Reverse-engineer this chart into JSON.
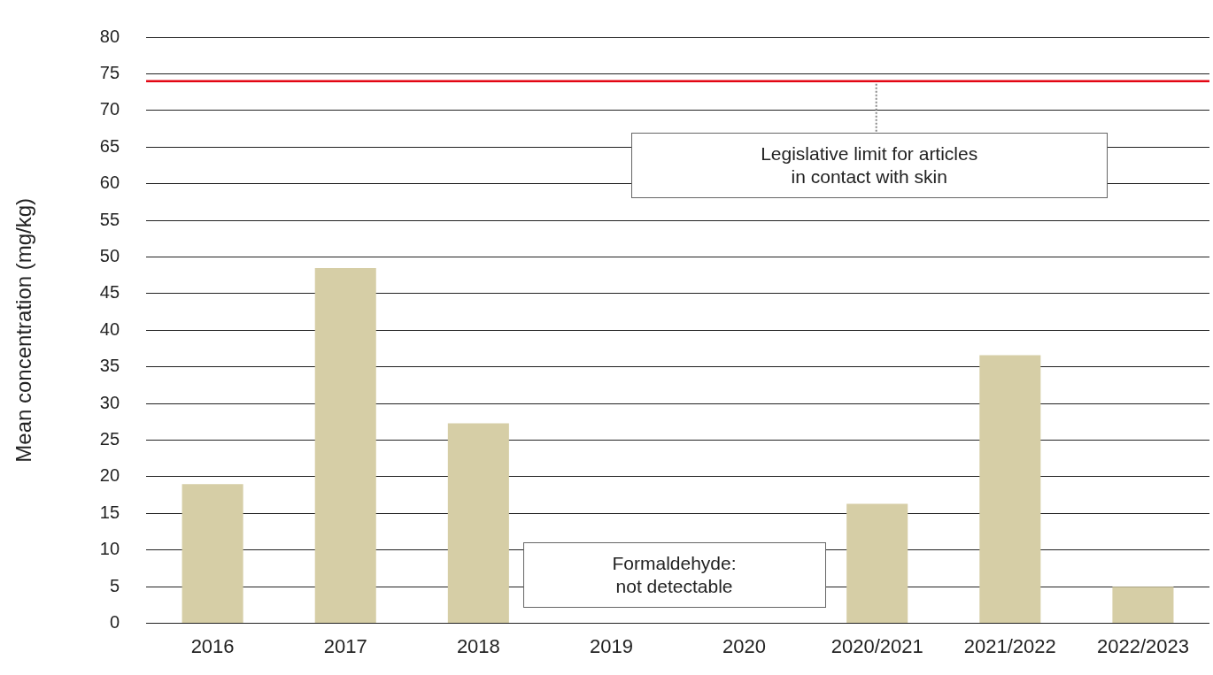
{
  "chart_data": {
    "type": "bar",
    "ylabel": "Mean concentration (mg/kg)",
    "categories": [
      "2016",
      "2017",
      "2018",
      "2019",
      "2020",
      "2020/2021",
      "2021/2022",
      "2022/2023"
    ],
    "values": [
      19,
      48.5,
      27.3,
      null,
      null,
      16.3,
      36.6,
      5
    ],
    "color": "#d6cea6",
    "ylim": [
      0,
      80
    ],
    "yticks": [
      0,
      5,
      10,
      15,
      20,
      25,
      30,
      35,
      40,
      45,
      50,
      55,
      60,
      65,
      70,
      75,
      80
    ],
    "grid": "y",
    "legend": false,
    "ref_lines": [
      {
        "axis": "y",
        "value": 74,
        "label": "Legislative limit for articles\nin contact with skin",
        "color": "#e30613"
      }
    ],
    "annotations": [
      "Formaldehyde:\nnot detectable"
    ]
  }
}
